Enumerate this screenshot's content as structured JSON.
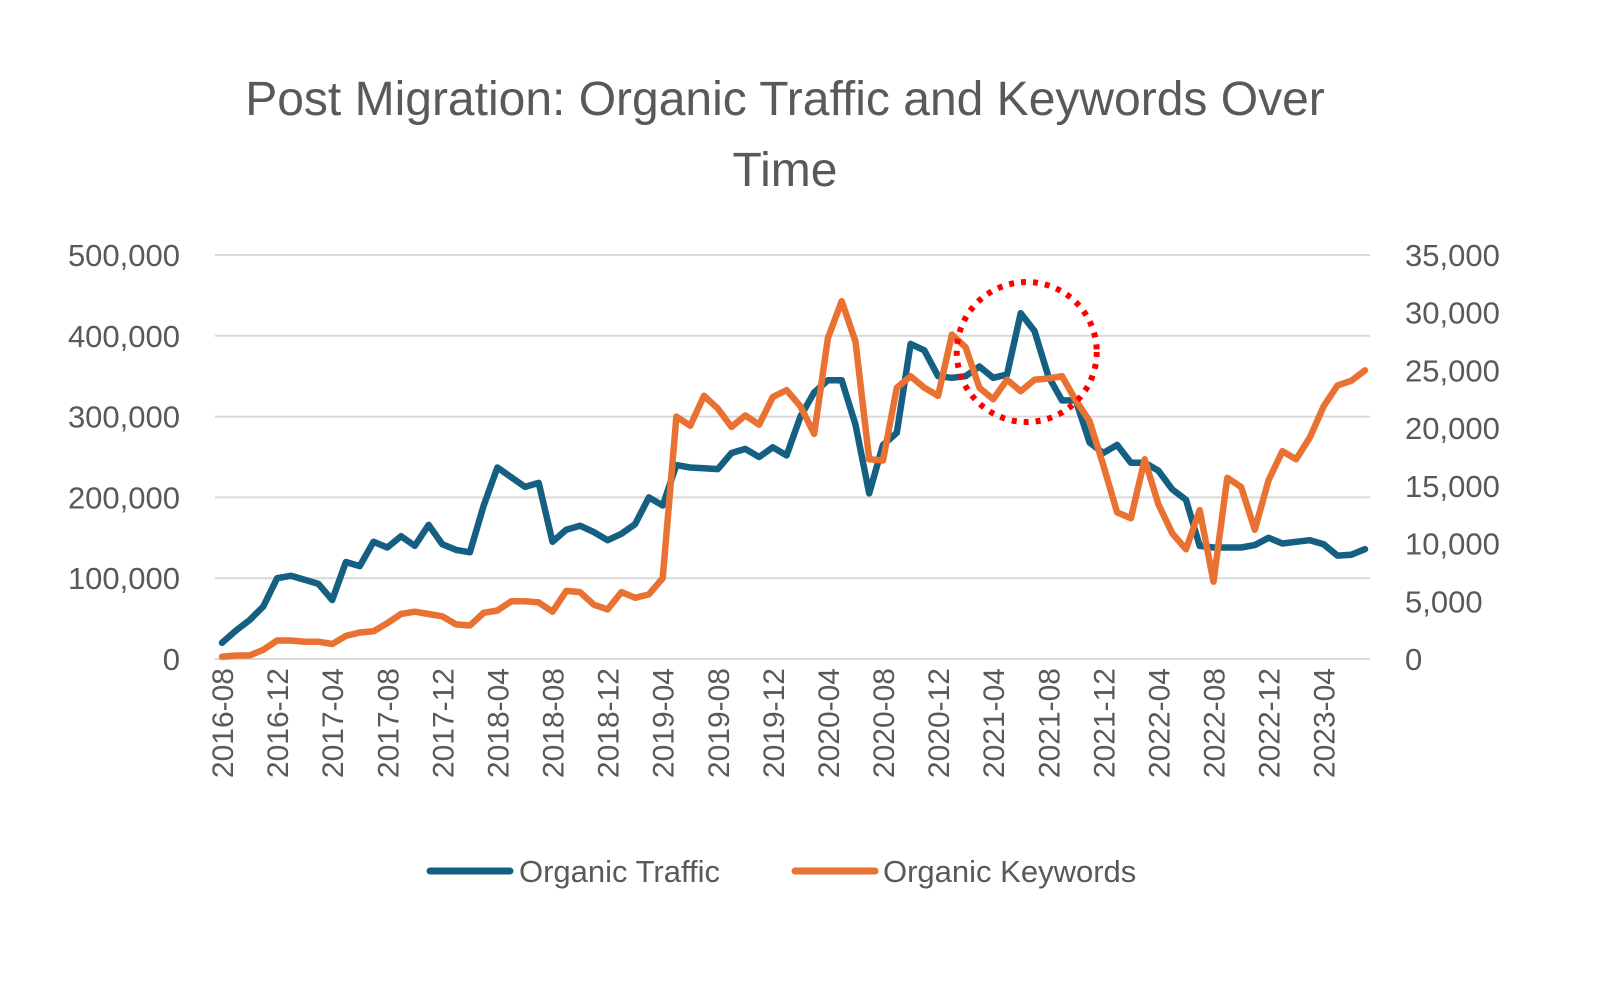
{
  "chart_data": {
    "type": "line",
    "title": "Post Migration: Organic Traffic and Keywords Over Time",
    "xlabel": "",
    "ylabel": "",
    "ylabel_right": "",
    "grid": true,
    "legend_position": "bottom",
    "ylim": [
      0,
      500000
    ],
    "ylim_right": [
      0,
      35000
    ],
    "y_ticks": [
      "0",
      "100,000",
      "200,000",
      "300,000",
      "400,000",
      "500,000"
    ],
    "y_ticks_right": [
      "0",
      "5,000",
      "10,000",
      "15,000",
      "20,000",
      "25,000",
      "30,000",
      "35,000"
    ],
    "x_tick_labels": [
      "2016-08",
      "2016-12",
      "2017-04",
      "2017-08",
      "2017-12",
      "2018-04",
      "2018-08",
      "2018-12",
      "2019-04",
      "2019-08",
      "2019-12",
      "2020-04",
      "2020-08",
      "2020-12",
      "2021-04",
      "2021-08",
      "2021-12",
      "2022-04",
      "2022-08",
      "2022-12",
      "2023-04"
    ],
    "x_start": "2016-08",
    "x_end": "2023-07",
    "series": [
      {
        "name": "Organic Traffic",
        "axis": "left",
        "color": "#156082",
        "values": [
          20000,
          35000,
          48000,
          65000,
          100000,
          103000,
          98000,
          93000,
          73000,
          120000,
          115000,
          145000,
          138000,
          152000,
          140000,
          166000,
          142000,
          135000,
          132000,
          190000,
          237000,
          225000,
          213000,
          218000,
          145000,
          160000,
          165000,
          157000,
          147000,
          155000,
          167000,
          200000,
          190000,
          240000,
          237000,
          236000,
          235000,
          255000,
          260000,
          250000,
          262000,
          252000,
          300000,
          330000,
          345000,
          345000,
          290000,
          205000,
          265000,
          280000,
          390000,
          382000,
          350000,
          348000,
          350000,
          362000,
          348000,
          352000,
          428000,
          406000,
          350000,
          320000,
          320000,
          268000,
          255000,
          265000,
          243000,
          243000,
          233000,
          210000,
          197000,
          140000,
          138000,
          138000,
          138000,
          141000,
          150000,
          143000,
          145000,
          147000,
          142000,
          128000,
          129000,
          136000
        ]
      },
      {
        "name": "Organic Keywords",
        "axis": "right",
        "color": "#E97132",
        "values": [
          200,
          300,
          300,
          800,
          1600,
          1600,
          1500,
          1500,
          1300,
          2000,
          2300,
          2400,
          3100,
          3900,
          4100,
          3900,
          3700,
          3000,
          2900,
          4000,
          4200,
          5000,
          5000,
          4900,
          4100,
          5900,
          5800,
          4700,
          4300,
          5800,
          5300,
          5600,
          7000,
          21000,
          20200,
          22800,
          21700,
          20100,
          21100,
          20300,
          22700,
          23300,
          21900,
          19500,
          27800,
          31000,
          27500,
          17300,
          17200,
          23500,
          24500,
          23500,
          22800,
          28100,
          27000,
          23500,
          22500,
          24200,
          23200,
          24200,
          24300,
          24500,
          22400,
          20600,
          16800,
          12700,
          12200,
          17300,
          13400,
          10900,
          9500,
          12900,
          6700,
          15700,
          14900,
          11200,
          15500,
          18000,
          17300,
          19200,
          21900,
          23700,
          24100,
          25000
        ]
      }
    ],
    "annotation": {
      "type": "dotted-circle",
      "color": "#FF0000",
      "around": "2021-06"
    }
  }
}
